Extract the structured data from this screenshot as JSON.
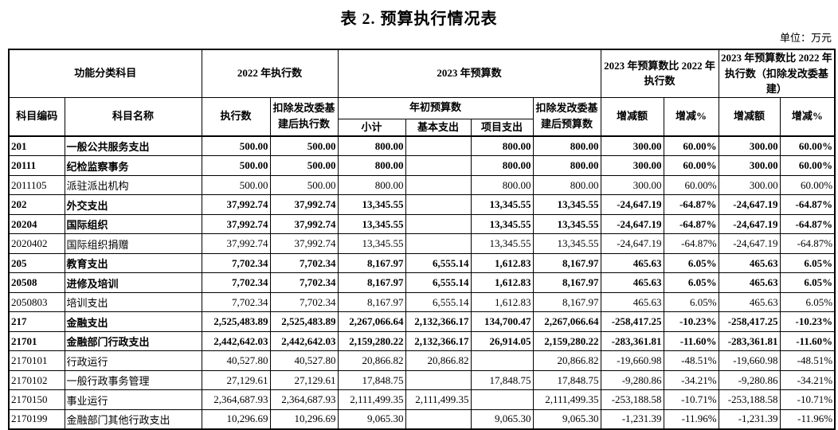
{
  "page": {
    "title": "表 2. 预算执行情况表",
    "unit_label": "单位：万元"
  },
  "table": {
    "header": {
      "group_function": "功能分类科目",
      "group_exec_2022": "2022 年执行数",
      "group_budget_2023": "2023 年预算数",
      "group_cmp": "2023 年预算数比 2022 年执行数",
      "group_cmp_net": "2023 年预算数比 2022 年执行数（扣除发改委基建）",
      "col_code": "科目编码",
      "col_name": "科目名称",
      "col_exec": "执行数",
      "col_exec_net": "扣除发改委基建后执行数",
      "col_initial_budget": "年初预算数",
      "col_subtotal": "小计",
      "col_basic": "基本支出",
      "col_project": "项目支出",
      "col_budget_net": "扣除发改委基建后预算数",
      "col_change": "增减额",
      "col_change_pct": "增减%"
    },
    "rows": [
      {
        "code": "201",
        "name": "一般公共服务支出",
        "level": 1,
        "bold": true,
        "cells": [
          "500.00",
          "500.00",
          "800.00",
          "",
          "800.00",
          "800.00",
          "300.00",
          "60.00%",
          "300.00",
          "60.00%"
        ]
      },
      {
        "code": "20111",
        "name": "纪检监察事务",
        "level": 2,
        "bold": true,
        "cells": [
          "500.00",
          "500.00",
          "800.00",
          "",
          "800.00",
          "800.00",
          "300.00",
          "60.00%",
          "300.00",
          "60.00%"
        ]
      },
      {
        "code": "2011105",
        "name": "派驻派出机构",
        "level": 3,
        "bold": false,
        "cells": [
          "500.00",
          "500.00",
          "800.00",
          "",
          "800.00",
          "800.00",
          "300.00",
          "60.00%",
          "300.00",
          "60.00%"
        ]
      },
      {
        "code": "202",
        "name": "外交支出",
        "level": 1,
        "bold": true,
        "cells": [
          "37,992.74",
          "37,992.74",
          "13,345.55",
          "",
          "13,345.55",
          "13,345.55",
          "-24,647.19",
          "-64.87%",
          "-24,647.19",
          "-64.87%"
        ]
      },
      {
        "code": "20204",
        "name": "国际组织",
        "level": 2,
        "bold": true,
        "cells": [
          "37,992.74",
          "37,992.74",
          "13,345.55",
          "",
          "13,345.55",
          "13,345.55",
          "-24,647.19",
          "-64.87%",
          "-24,647.19",
          "-64.87%"
        ]
      },
      {
        "code": "2020402",
        "name": "国际组织捐赠",
        "level": 3,
        "bold": false,
        "cells": [
          "37,992.74",
          "37,992.74",
          "13,345.55",
          "",
          "13,345.55",
          "13,345.55",
          "-24,647.19",
          "-64.87%",
          "-24,647.19",
          "-64.87%"
        ]
      },
      {
        "code": "205",
        "name": "教育支出",
        "level": 1,
        "bold": true,
        "cells": [
          "7,702.34",
          "7,702.34",
          "8,167.97",
          "6,555.14",
          "1,612.83",
          "8,167.97",
          "465.63",
          "6.05%",
          "465.63",
          "6.05%"
        ]
      },
      {
        "code": "20508",
        "name": "进修及培训",
        "level": 2,
        "bold": true,
        "cells": [
          "7,702.34",
          "7,702.34",
          "8,167.97",
          "6,555.14",
          "1,612.83",
          "8,167.97",
          "465.63",
          "6.05%",
          "465.63",
          "6.05%"
        ]
      },
      {
        "code": "2050803",
        "name": "培训支出",
        "level": 3,
        "bold": false,
        "cells": [
          "7,702.34",
          "7,702.34",
          "8,167.97",
          "6,555.14",
          "1,612.83",
          "8,167.97",
          "465.63",
          "6.05%",
          "465.63",
          "6.05%"
        ]
      },
      {
        "code": "217",
        "name": "金融支出",
        "level": 1,
        "bold": true,
        "cells": [
          "2,525,483.89",
          "2,525,483.89",
          "2,267,066.64",
          "2,132,366.17",
          "134,700.47",
          "2,267,066.64",
          "-258,417.25",
          "-10.23%",
          "-258,417.25",
          "-10.23%"
        ]
      },
      {
        "code": "21701",
        "name": "金融部门行政支出",
        "level": 2,
        "bold": true,
        "cells": [
          "2,442,642.03",
          "2,442,642.03",
          "2,159,280.22",
          "2,132,366.17",
          "26,914.05",
          "2,159,280.22",
          "-283,361.81",
          "-11.60%",
          "-283,361.81",
          "-11.60%"
        ]
      },
      {
        "code": "2170101",
        "name": "行政运行",
        "level": 3,
        "bold": false,
        "cells": [
          "40,527.80",
          "40,527.80",
          "20,866.82",
          "20,866.82",
          "",
          "20,866.82",
          "-19,660.98",
          "-48.51%",
          "-19,660.98",
          "-48.51%"
        ]
      },
      {
        "code": "2170102",
        "name": "一般行政事务管理",
        "level": 3,
        "bold": false,
        "cells": [
          "27,129.61",
          "27,129.61",
          "17,848.75",
          "",
          "17,848.75",
          "17,848.75",
          "-9,280.86",
          "-34.21%",
          "-9,280.86",
          "-34.21%"
        ]
      },
      {
        "code": "2170150",
        "name": "事业运行",
        "level": 3,
        "bold": false,
        "cells": [
          "2,364,687.93",
          "2,364,687.93",
          "2,111,499.35",
          "2,111,499.35",
          "",
          "2,111,499.35",
          "-253,188.58",
          "-10.71%",
          "-253,188.58",
          "-10.71%"
        ]
      },
      {
        "code": "2170199",
        "name": "金融部门其他行政支出",
        "level": 3,
        "bold": false,
        "cells": [
          "10,296.69",
          "10,296.69",
          "9,065.30",
          "",
          "9,065.30",
          "9,065.30",
          "-1,231.39",
          "-11.96%",
          "-1,231.39",
          "-11.96%"
        ]
      }
    ]
  }
}
